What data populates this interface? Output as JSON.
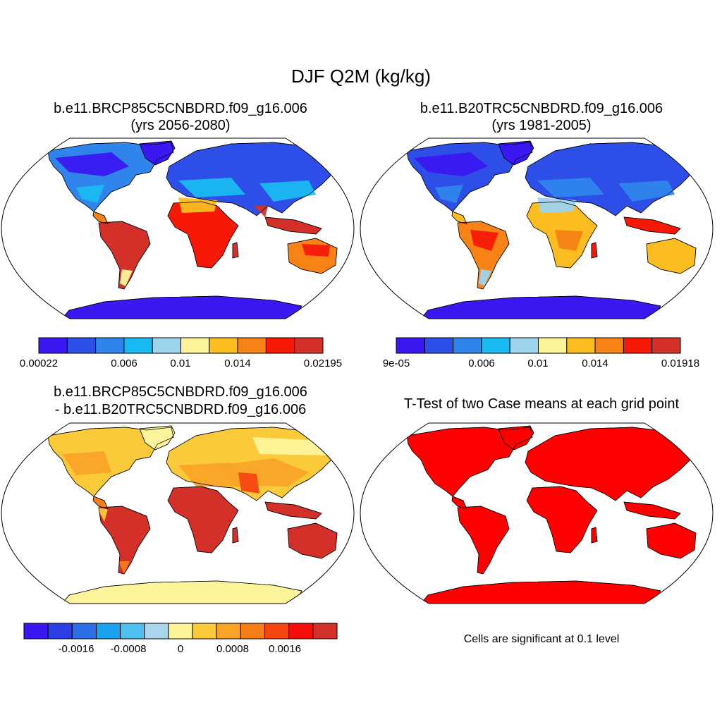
{
  "main_title": "DJF Q2M (kg/kg)",
  "colors": {
    "land_outline": "#000000",
    "ocean": "#ffffff",
    "significant": "#ff0000"
  },
  "panels": [
    {
      "title_line1": "b.e11.BRCP85C5CNBDRD.f09_g16.006",
      "title_line2": "(yrs 2056-2080)",
      "colorbar": {
        "colors": [
          "#3a18f2",
          "#2e4ee8",
          "#2f85ec",
          "#1ab9f2",
          "#9ed3ee",
          "#fbf49a",
          "#fbbd20",
          "#f78216",
          "#f61908",
          "#d3302a"
        ],
        "labels": [
          "0.00022",
          "0.006",
          "0.01",
          "0.014",
          "0.02195"
        ]
      }
    },
    {
      "title_line1": "b.e11.B20TRC5CNBDRD.f09_g16.006",
      "title_line2": "(yrs 1981-2005)",
      "colorbar": {
        "colors": [
          "#3a18f2",
          "#2e4ee8",
          "#2f85ec",
          "#1ab9f2",
          "#9ed3ee",
          "#fbf49a",
          "#fbbd20",
          "#f78216",
          "#f61908",
          "#d3302a"
        ],
        "labels": [
          "9e-05",
          "0.006",
          "0.01",
          "0.014",
          "0.01918"
        ]
      }
    },
    {
      "title_line1": "b.e11.BRCP85C5CNBDRD.f09_g16.006",
      "title_line2": "- b.e11.B20TRC5CNBDRD.f09_g16.006",
      "colorbar": {
        "colors": [
          "#3a18f2",
          "#2c3ee6",
          "#2d6fe8",
          "#1aa2ef",
          "#4ec0ef",
          "#a9d6ee",
          "#fbf49a",
          "#fbca3a",
          "#f9a328",
          "#f77c1a",
          "#f64710",
          "#f50d0c",
          "#d3302a"
        ],
        "labels": [
          "-0.0016",
          "-0.0008",
          "0",
          "0.0008",
          "0.0016"
        ]
      }
    },
    {
      "title_line1": "T-Test of two Case means at each grid point",
      "note": "Cells are significant at 0.1 level"
    }
  ]
}
